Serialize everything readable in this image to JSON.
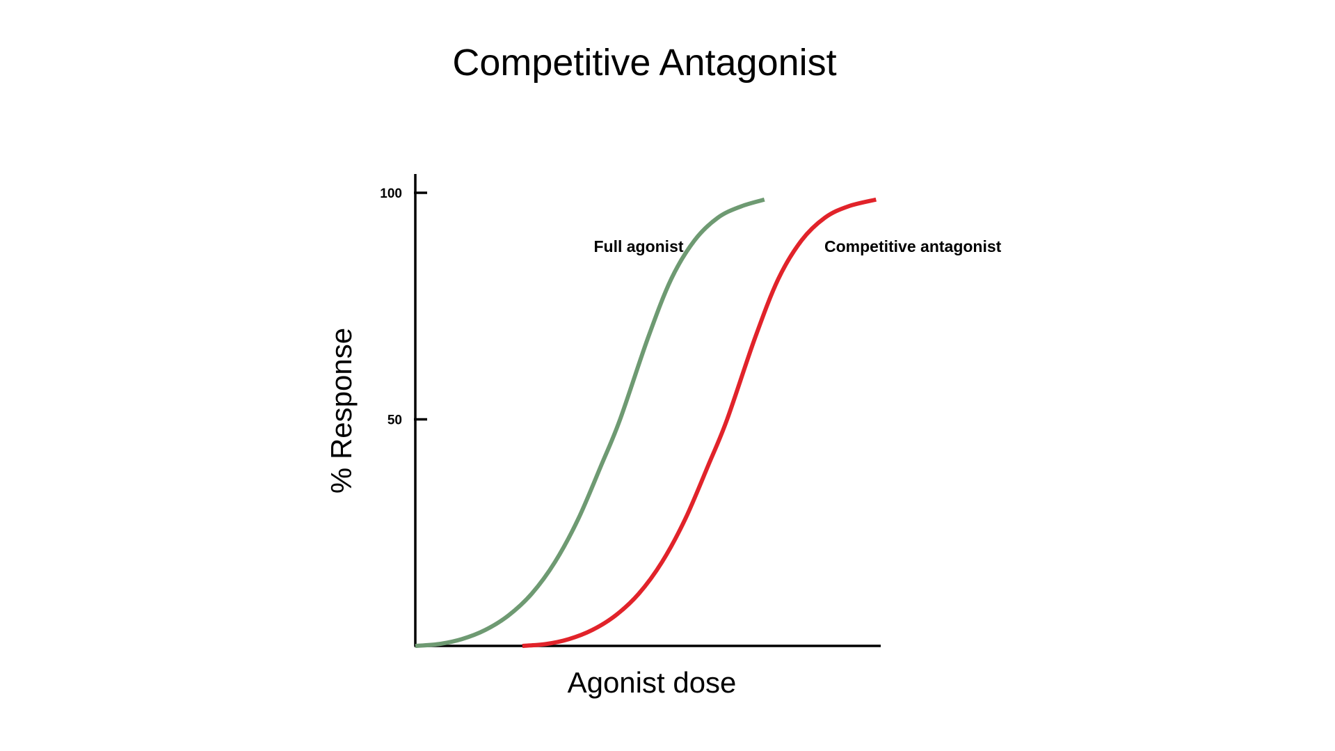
{
  "chart_data": {
    "type": "line",
    "title": "Competitive Antagonist",
    "xlabel": "Agonist dose",
    "ylabel": "% Response",
    "xlim": [
      0,
      100
    ],
    "ylim": [
      0,
      100
    ],
    "yticks": [
      50,
      100
    ],
    "ytick_labels": [
      "50",
      "100"
    ],
    "grid": false,
    "legend": "none",
    "series": [
      {
        "name": "Full agonist",
        "color": "#6e9a72",
        "points": [
          [
            0,
            0
          ],
          [
            5,
            0.4
          ],
          [
            10,
            1.5
          ],
          [
            15,
            3.5
          ],
          [
            20,
            6.7
          ],
          [
            25,
            11.5
          ],
          [
            30,
            18.5
          ],
          [
            35,
            28
          ],
          [
            40,
            40
          ],
          [
            44,
            50
          ],
          [
            50,
            68
          ],
          [
            55,
            81
          ],
          [
            60,
            89.5
          ],
          [
            65,
            94.5
          ],
          [
            70,
            97
          ],
          [
            75,
            98.5
          ]
        ]
      },
      {
        "name": "Competitive antagonist",
        "color": "#e1232a",
        "points": [
          [
            23,
            0
          ],
          [
            28,
            0.4
          ],
          [
            33,
            1.5
          ],
          [
            38,
            3.5
          ],
          [
            43,
            6.7
          ],
          [
            48,
            11.5
          ],
          [
            53,
            18.5
          ],
          [
            58,
            28
          ],
          [
            63,
            40
          ],
          [
            67,
            50
          ],
          [
            73,
            68
          ],
          [
            78,
            81
          ],
          [
            83,
            89.5
          ],
          [
            88,
            94.5
          ],
          [
            93,
            97
          ],
          [
            99,
            98.5
          ]
        ]
      }
    ]
  }
}
